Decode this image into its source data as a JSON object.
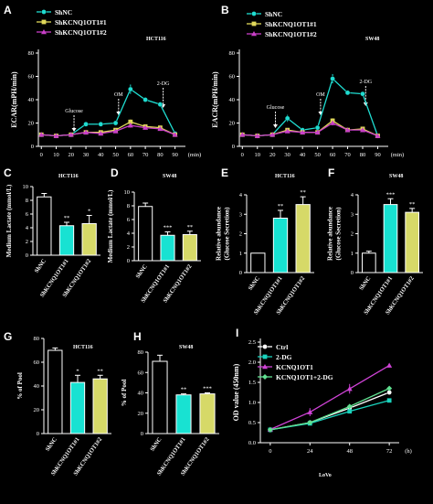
{
  "colors": {
    "background": "#000000",
    "axis": "#ffffff",
    "shnc": "#1fdcd0",
    "kd1": "#e0d85a",
    "kd2": "#c83fc7",
    "bar_control": "#000000",
    "bar_kd1": "#18e2d2",
    "bar_kd2": "#d6d968",
    "i_ctrl": "#ffffff",
    "i_2dg": "#1ad3bd",
    "i_kcnq": "#cf43d6",
    "i_kcnq_2dg": "#60e090"
  },
  "chart_data": [
    {
      "panel": "A",
      "type": "line",
      "annotation": "HCT116",
      "ylabel": "ECAR(mPH/min)",
      "xlabel": "(min)",
      "x": [
        0,
        10,
        20,
        30,
        40,
        50,
        60,
        70,
        80,
        90
      ],
      "xticks": [
        "0",
        "10",
        "20",
        "30",
        "40",
        "50",
        "60",
        "70",
        "80",
        "90"
      ],
      "yticks": [
        "0",
        "20",
        "40",
        "60",
        "80"
      ],
      "ylim": [
        0,
        80
      ],
      "events": [
        {
          "label": "Glucose",
          "x": 22
        },
        {
          "label": "OM",
          "x": 52
        },
        {
          "label": "2-DG",
          "x": 82
        }
      ],
      "series": [
        {
          "name": "ShNC",
          "values": [
            10,
            9,
            10,
            19,
            19,
            20,
            49,
            40,
            36,
            11
          ]
        },
        {
          "name": "ShKCNQ1OT1#1",
          "values": [
            10,
            9,
            10,
            12,
            12,
            14,
            21,
            17,
            16,
            10
          ]
        },
        {
          "name": "ShKCNQ1OT1#2",
          "values": [
            10,
            9,
            10,
            12,
            11,
            13,
            18,
            16,
            15,
            10
          ]
        }
      ]
    },
    {
      "panel": "B",
      "type": "line",
      "annotation": "SW48",
      "ylabel": "EACR(mPH/min)",
      "xlabel": "(min)",
      "x": [
        0,
        10,
        20,
        30,
        40,
        50,
        60,
        70,
        80,
        90
      ],
      "xticks": [
        "0",
        "10",
        "20",
        "30",
        "40",
        "50",
        "60",
        "70",
        "80",
        "90"
      ],
      "yticks": [
        "0",
        "20",
        "40",
        "60",
        "80"
      ],
      "ylim": [
        0,
        80
      ],
      "events": [
        {
          "label": "Glucose",
          "x": 22
        },
        {
          "label": "OM",
          "x": 52
        },
        {
          "label": "2-DG",
          "x": 82
        }
      ],
      "series": [
        {
          "name": "ShNC",
          "values": [
            10,
            9,
            10,
            24,
            14,
            16,
            58,
            46,
            45,
            9
          ]
        },
        {
          "name": "ShKCNQ1OT1#1",
          "values": [
            10,
            9,
            10,
            14,
            12,
            12,
            22,
            14,
            15,
            9
          ]
        },
        {
          "name": "ShKCNQ1OT1#2",
          "values": [
            10,
            9,
            10,
            13,
            12,
            12,
            20,
            14,
            14,
            9
          ]
        }
      ]
    },
    {
      "panel": "C",
      "type": "bar",
      "annotation": "HCT116",
      "ylabel": "Medium Lactate (mmol/L)",
      "categories": [
        "ShNC",
        "ShKCNQ1OT1#1",
        "ShKCNQ1OT1#2"
      ],
      "values": [
        8.5,
        4.3,
        4.6
      ],
      "errors": [
        0.5,
        0.5,
        1.2
      ],
      "sig": [
        "",
        "**",
        "*"
      ],
      "yticks": [
        "0",
        "2",
        "4",
        "6",
        "8",
        "10"
      ],
      "ylim": [
        0,
        10
      ]
    },
    {
      "panel": "D",
      "type": "bar",
      "annotation": "SW48",
      "ylabel": "Medium Lactate (mmol/L)",
      "categories": [
        "ShNC",
        "ShKCNQ1OT1#1",
        "ShKCNQ1OT1#2"
      ],
      "values": [
        7.9,
        3.7,
        3.8
      ],
      "errors": [
        0.5,
        0.5,
        0.5
      ],
      "sig": [
        "",
        "***",
        "**"
      ],
      "yticks": [
        "0",
        "2",
        "4",
        "6",
        "8",
        "10"
      ],
      "ylim": [
        0,
        10
      ]
    },
    {
      "panel": "E",
      "type": "bar",
      "annotation": "HCT116",
      "ylabel": "Relative abundance (Glucose Secretion)",
      "categories": [
        "ShNC",
        "ShKCNQ1OT1#1",
        "ShKCNQ1OT1#2"
      ],
      "values": [
        1.0,
        2.8,
        3.5
      ],
      "errors": [
        0,
        0.4,
        0.4
      ],
      "sig": [
        "",
        "**",
        "**"
      ],
      "yticks": [
        "0",
        "1",
        "2",
        "3",
        "4"
      ],
      "ylim": [
        0,
        4
      ]
    },
    {
      "panel": "F",
      "type": "bar",
      "annotation": "SW48",
      "ylabel": "Relative abundance (Glucose Secretion)",
      "categories": [
        "ShNC",
        "ShKCNQ1OT1#1",
        "ShKCNQ1OT1#2"
      ],
      "values": [
        1.0,
        3.5,
        3.1
      ],
      "errors": [
        0.1,
        0.3,
        0.2
      ],
      "sig": [
        "",
        "***",
        "**"
      ],
      "yticks": [
        "0",
        "1",
        "2",
        "3",
        "4"
      ],
      "ylim": [
        0,
        4
      ]
    },
    {
      "panel": "G",
      "type": "bar",
      "annotation": "HCT116",
      "ylabel": "% of Pool",
      "categories": [
        "ShNC",
        "ShKCNQ1OT1#1",
        "ShKCNQ1OT1#2"
      ],
      "values": [
        70,
        43,
        46
      ],
      "errors": [
        2,
        6,
        3
      ],
      "sig": [
        "",
        "*",
        "**"
      ],
      "yticks": [
        "0",
        "20",
        "40",
        "60",
        "80"
      ],
      "ylim": [
        0,
        80
      ]
    },
    {
      "panel": "H",
      "type": "bar",
      "annotation": "SW48",
      "ylabel": "% of Pool",
      "categories": [
        "ShNC",
        "ShKCNQ1OT1#1",
        "ShKCNQ1OT1#2"
      ],
      "values": [
        71,
        38,
        39
      ],
      "errors": [
        6,
        1,
        1
      ],
      "sig": [
        "",
        "**",
        "***"
      ],
      "yticks": [
        "0",
        "20",
        "40",
        "60",
        "80"
      ],
      "ylim": [
        0,
        80
      ]
    },
    {
      "panel": "I",
      "type": "line",
      "annotation": "LoVo",
      "ylabel": "OD value (450nm)",
      "xlabel": "(h)",
      "x": [
        0,
        24,
        48,
        72
      ],
      "xticks": [
        "0",
        "24",
        "48",
        "72"
      ],
      "yticks": [
        "0.0",
        "0.5",
        "1.0",
        "1.5",
        "2.0",
        "2.5"
      ],
      "ylim": [
        0,
        2.5
      ],
      "series": [
        {
          "name": "Ctrl",
          "values": [
            0.32,
            0.5,
            0.86,
            1.25
          ]
        },
        {
          "name": "2-DG",
          "values": [
            0.32,
            0.48,
            0.78,
            1.05
          ]
        },
        {
          "name": "KCNQ1OT1",
          "values": [
            0.33,
            0.76,
            1.34,
            1.92
          ]
        },
        {
          "name": "KCNQ1OT1+2-DG",
          "values": [
            0.32,
            0.5,
            0.9,
            1.35
          ]
        }
      ]
    }
  ]
}
